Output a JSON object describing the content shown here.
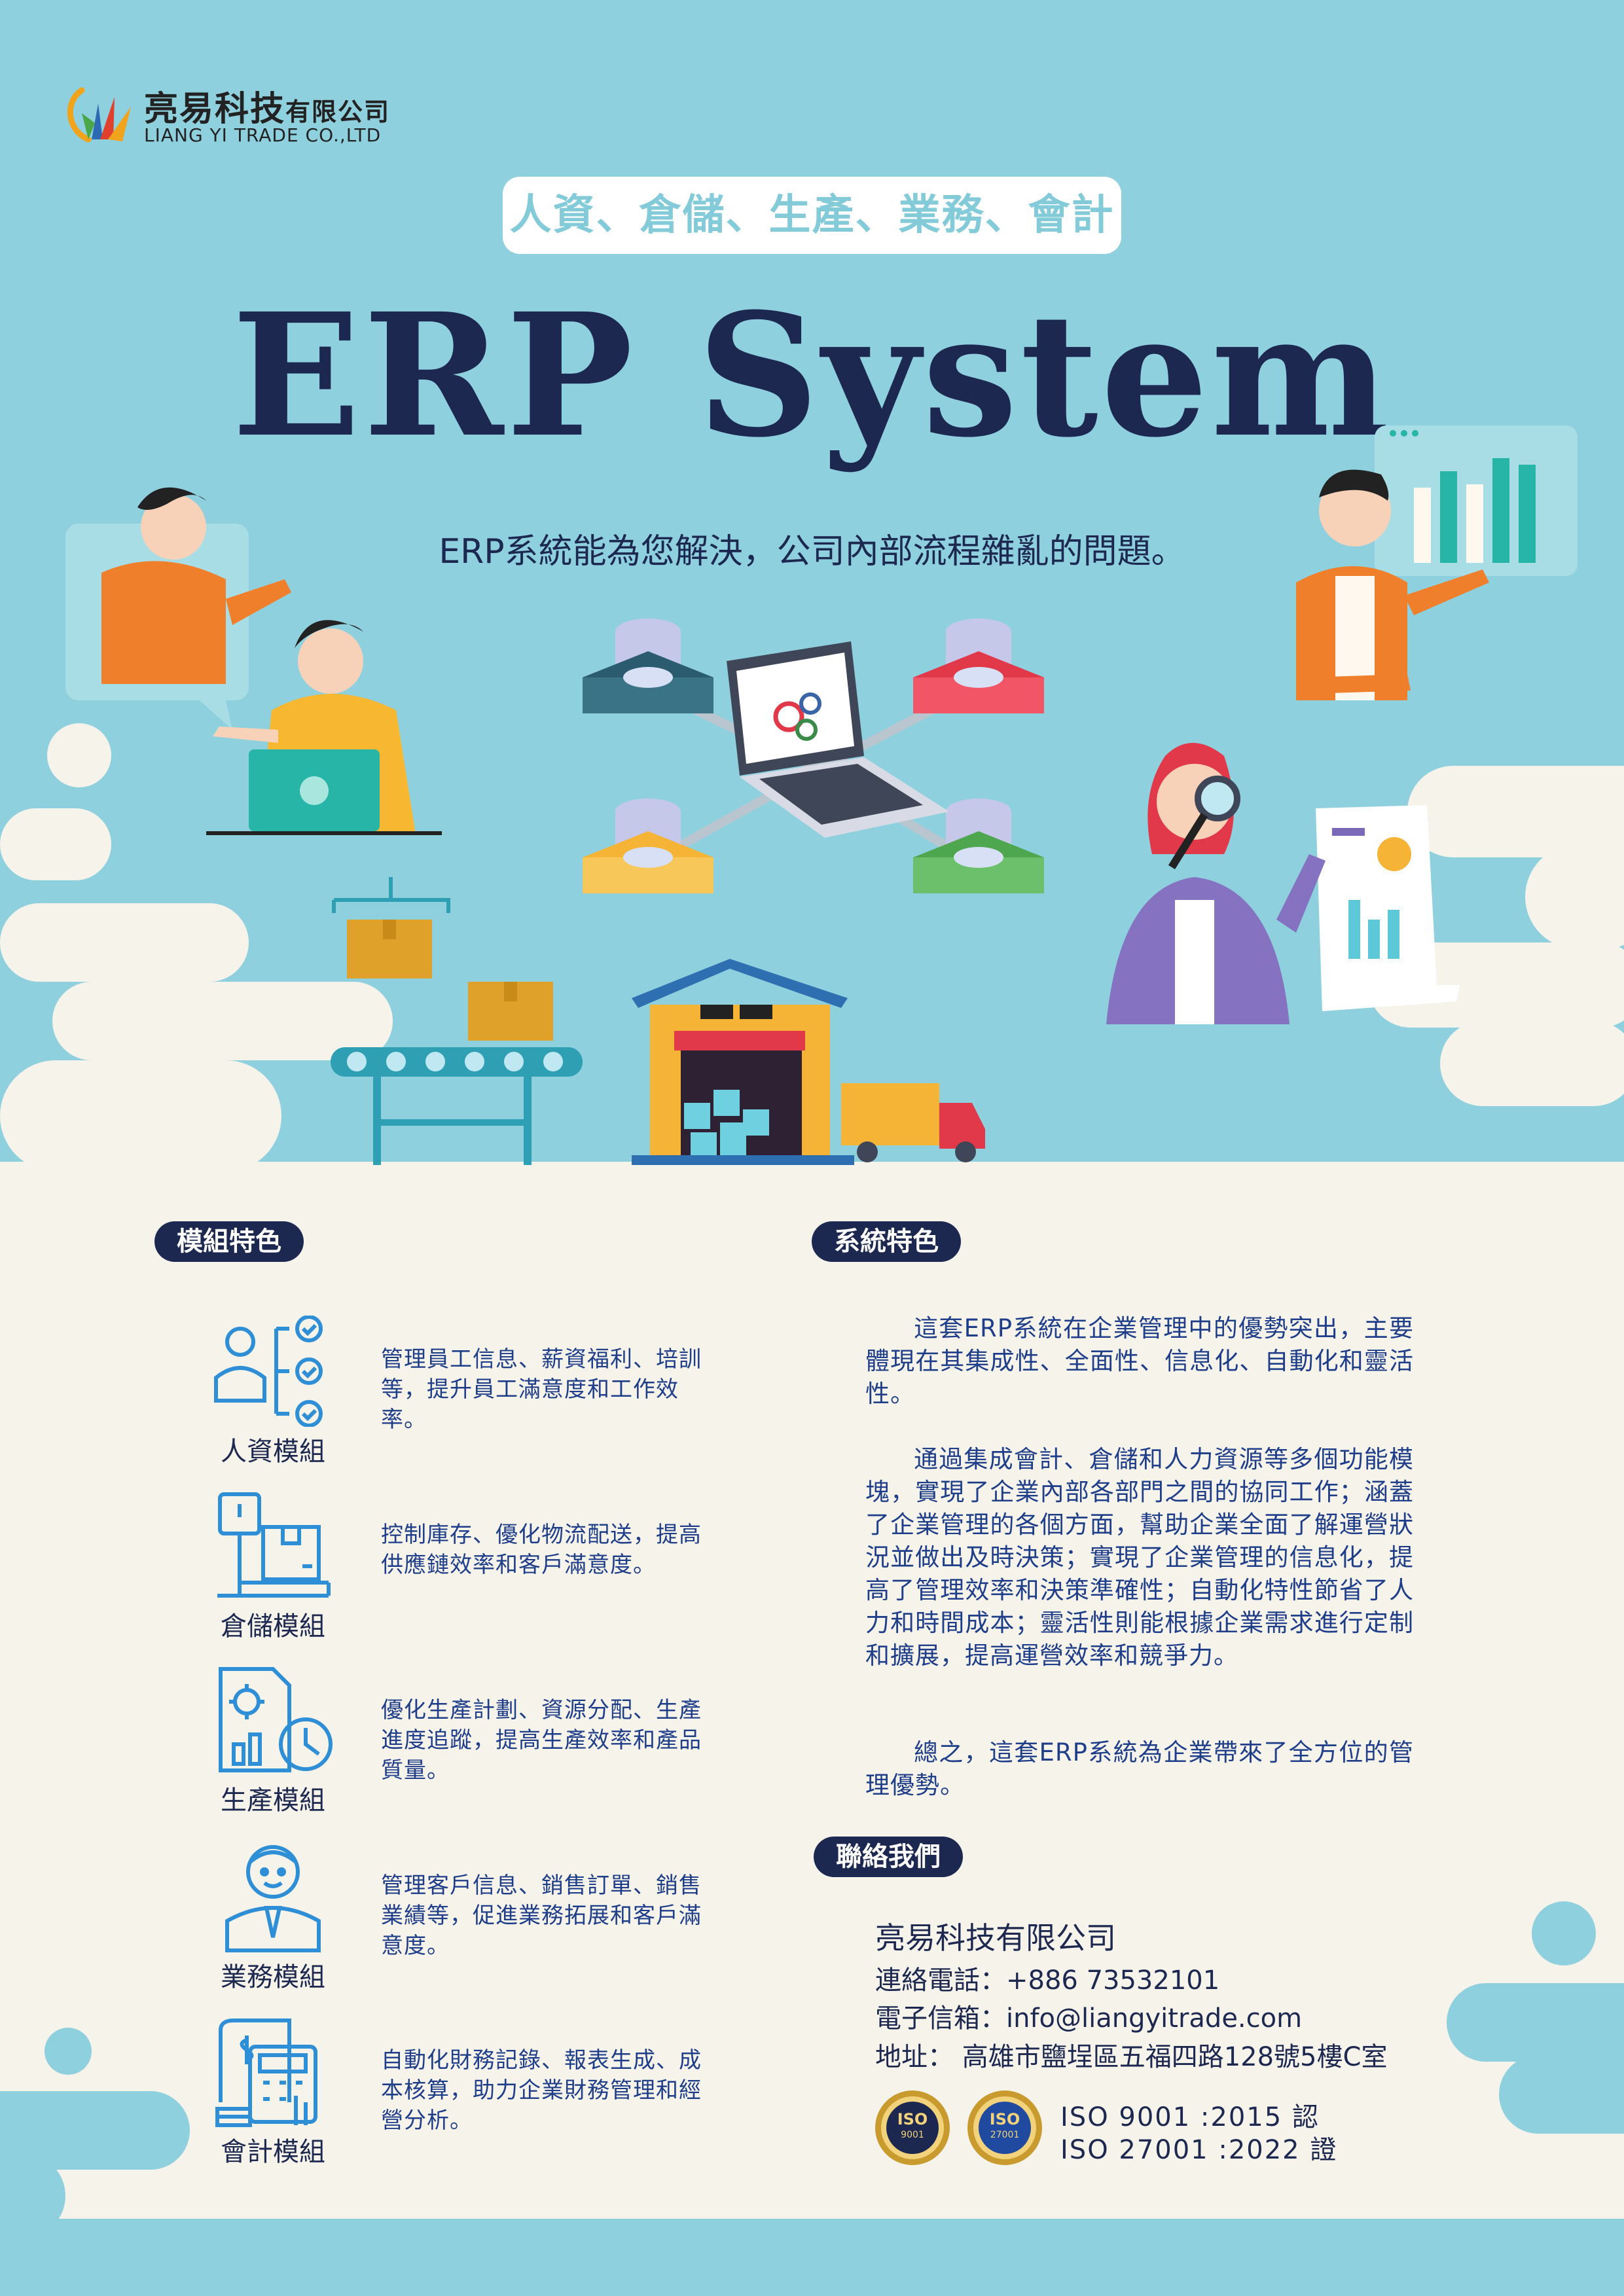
{
  "company": {
    "name_zh": "亮易科技",
    "name_zh_suffix": "有限公司",
    "name_en": "LIANG YI TRADE CO.,LTD"
  },
  "header": {
    "topics": "人資、倉儲、生產、業務、會計",
    "title": "ERP System",
    "subtitle": "ERP系統能為您解決，公司內部流程雜亂的問題。"
  },
  "modules": {
    "heading": "模組特色",
    "items": [
      {
        "label": "人資模組",
        "desc": "管理員工信息、薪資福利、培訓等，提升員工滿意度和工作效率。",
        "icon": "hr-checklist-icon"
      },
      {
        "label": "倉儲模組",
        "desc": "控制庫存、優化物流配送，提高供應鏈效率和客戶滿意度。",
        "icon": "warehouse-scale-icon"
      },
      {
        "label": "生產模組",
        "desc": "優化生產計劃、資源分配、生產進度追蹤，提高生產效率和產品質量。",
        "icon": "production-report-icon"
      },
      {
        "label": "業務模組",
        "desc": "管理客戶信息、銷售訂單、銷售業績等，促進業務拓展和客戶滿意度。",
        "icon": "sales-person-icon"
      },
      {
        "label": "會計模組",
        "desc": "自動化財務記錄、報表生成、成本核算，助力企業財務管理和經營分析。",
        "icon": "accounting-calculator-icon"
      }
    ]
  },
  "system": {
    "heading": "系統特色",
    "paragraphs": [
      "這套ERP系統在企業管理中的優勢突出，主要體現在其集成性、全面性、信息化、自動化和靈活性。",
      "通過集成會計、倉儲和人力資源等多個功能模塊，實現了企業內部各部門之間的協同工作；涵蓋了企業管理的各個方面，幫助企業全面了解運營狀況並做出及時決策；實現了企業管理的信息化，提高了管理效率和決策準確性；自動化特性節省了人力和時間成本；靈活性則能根據企業需求進行定制和擴展，提高運營效率和競爭力。",
      "總之，這套ERP系統為企業帶來了全方位的管理優勢。"
    ]
  },
  "contact": {
    "heading": "聯絡我們",
    "company": "亮易科技有限公司",
    "phone": "連絡電話：+886 73532101",
    "email": "電子信箱：info@liangyitrade.com",
    "address": "地址： 高雄市鹽埕區五福四路128號5樓C室",
    "iso_badges": [
      {
        "top": "ISO",
        "bottom": "9001"
      },
      {
        "top": "ISO",
        "bottom": "27001"
      }
    ],
    "iso_line1": "ISO  9001  :2015  認",
    "iso_line2": "ISO 27001 :2022  證"
  },
  "colors": {
    "background": "#8fd0df",
    "cream": "#f6f3ea",
    "navy": "#1c2850",
    "text_blue": "#1f3e8a",
    "icon_blue": "#2f8fd6"
  }
}
